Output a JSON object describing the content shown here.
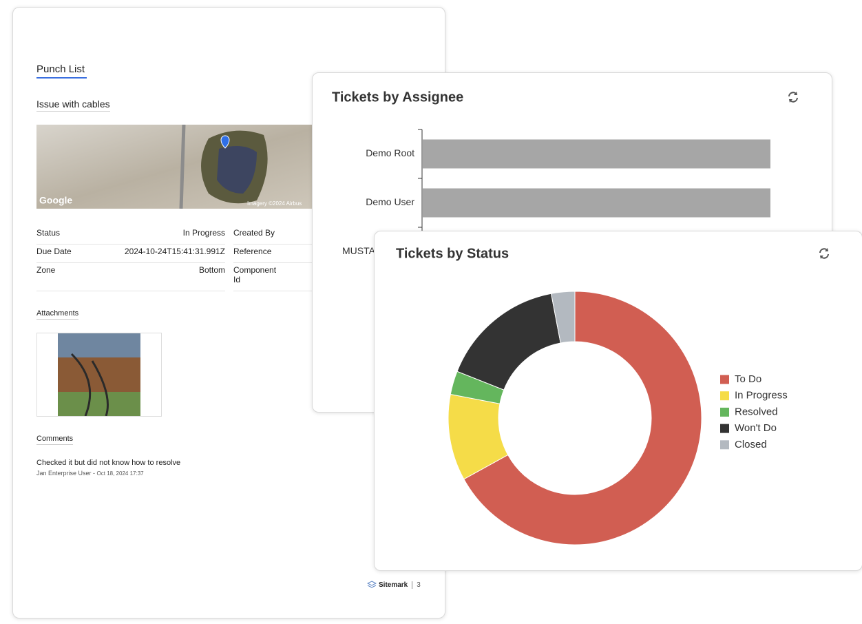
{
  "document": {
    "header": {
      "title": "Punch List"
    },
    "issue": "Issue with cables",
    "map": {
      "brand": "Google",
      "credit": "Imagery ©2024 Airbus"
    },
    "fields": [
      {
        "label": "Status",
        "value": "In Progress",
        "label2": "Created By"
      },
      {
        "label": "Due Date",
        "value": "2024-10-24T15:41:31.991Z",
        "label2": "Reference"
      },
      {
        "label": "Zone",
        "value": "Bottom",
        "label2": "Component Id"
      }
    ],
    "attachments": "Attachments",
    "comments": "Comments",
    "comment": {
      "text": "Checked it but did not know how to resolve",
      "author": "Jan Enterprise User -",
      "date": "Oct 18, 2024 17:37"
    },
    "footer": {
      "brand": "Sitemark",
      "page": "3"
    }
  },
  "chart_data": [
    {
      "type": "hbar",
      "title": "Tickets by Assignee",
      "categories": [
        "Demo Root",
        "Demo User",
        "MUSTA"
      ],
      "values": [
        7,
        7,
        null
      ],
      "color": "#a6a6a6"
    },
    {
      "type": "donut",
      "title": "Tickets by Status",
      "categories": [
        "To Do",
        "In Progress",
        "Resolved",
        "Won't Do",
        "Closed"
      ],
      "values": [
        67,
        11,
        3,
        16,
        3
      ],
      "colors": [
        "#d15e52",
        "#f5dc48",
        "#64b65d",
        "#333333",
        "#b3b9c0"
      ],
      "legend": "right"
    }
  ]
}
